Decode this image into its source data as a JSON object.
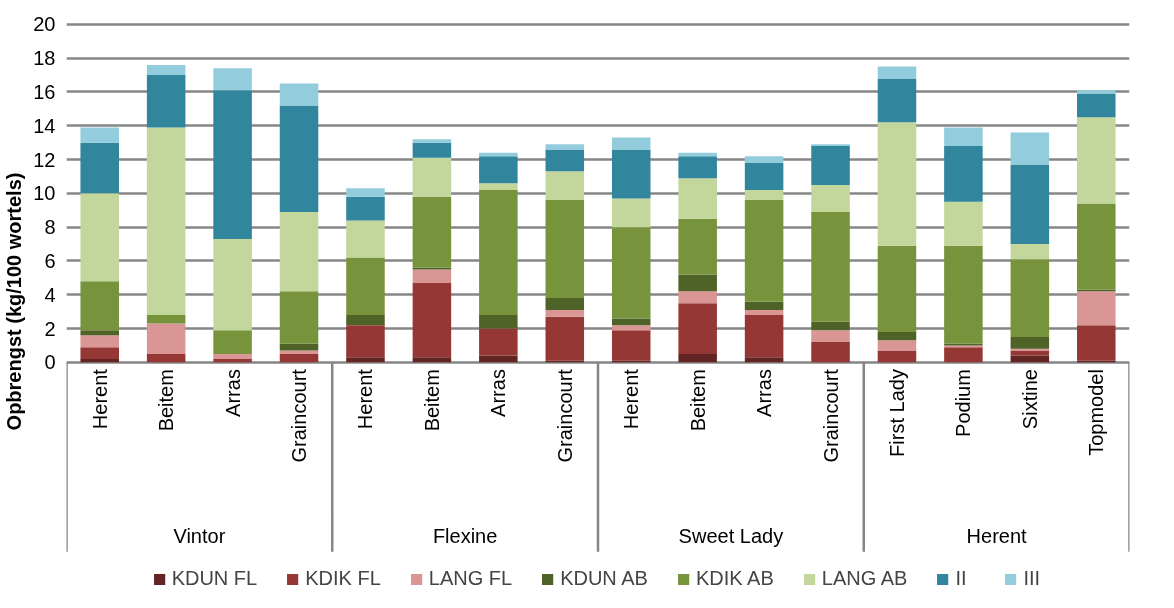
{
  "chart_data": {
    "type": "bar",
    "stacked": true,
    "ylabel": "Opbrengst (kg/100 wortels)",
    "categories": [
      "Herent",
      "Beitem",
      "Arras",
      "Graincourt",
      "Herent",
      "Beitem",
      "Arras",
      "Graincourt",
      "Herent",
      "Beitem",
      "Arras",
      "Graincourt",
      "First Lady",
      "Podium",
      "Sixtine",
      "Topmodel"
    ],
    "annotations": [
      "Vintor",
      "Flexine",
      "Sweet Lady",
      "Herent"
    ],
    "series": [
      {
        "name": "KDUN FL",
        "color": "#632523",
        "values": [
          0.2,
          0,
          0,
          0,
          0.3,
          0.3,
          0.4,
          0.1,
          0.1,
          0.5,
          0.3,
          0,
          0,
          0,
          0.4,
          0.1
        ]
      },
      {
        "name": "KDIK FL",
        "color": "#953735",
        "values": [
          0.7,
          0.5,
          0.2,
          0.5,
          1.9,
          4.4,
          1.6,
          2.6,
          1.8,
          3.0,
          2.5,
          1.2,
          0.7,
          0.9,
          0.3,
          2.1
        ]
      },
      {
        "name": "LANG FL",
        "color": "#d99694",
        "values": [
          0.7,
          1.8,
          0.3,
          0.2,
          0,
          0.8,
          0,
          0.4,
          0.3,
          0.7,
          0.3,
          0.7,
          0.6,
          0.1,
          0.1,
          2.0
        ]
      },
      {
        "name": "KDUN AB",
        "color": "#4f6228",
        "values": [
          0.3,
          0,
          0,
          0.4,
          0.6,
          0.1,
          0.8,
          0.7,
          0.4,
          1.0,
          0.5,
          0.5,
          0.5,
          0.1,
          0.7,
          0.1
        ]
      },
      {
        "name": "KDIK AB",
        "color": "#77933c",
        "values": [
          2.9,
          0.5,
          1.4,
          3.1,
          3.4,
          4.2,
          7.4,
          5.8,
          5.4,
          3.3,
          6.0,
          6.5,
          5.1,
          5.8,
          4.6,
          5.1
        ]
      },
      {
        "name": "LANG AB",
        "color": "#c3d69b",
        "values": [
          5.2,
          11.1,
          5.4,
          4.7,
          2.2,
          2.3,
          0.4,
          1.7,
          1.7,
          2.4,
          0.6,
          1.6,
          7.3,
          2.6,
          0.9,
          5.1
        ]
      },
      {
        "name": "II",
        "color": "#31859c",
        "values": [
          3.0,
          3.1,
          8.8,
          6.3,
          1.4,
          0.9,
          1.6,
          1.3,
          2.9,
          1.3,
          1.6,
          2.3,
          2.6,
          3.3,
          4.7,
          1.4
        ]
      },
      {
        "name": "III",
        "color": "#93cddd",
        "values": [
          0.9,
          0.6,
          1.3,
          1.3,
          0.5,
          0.2,
          0.2,
          0.3,
          0.7,
          0.2,
          0.4,
          0.1,
          0.7,
          1.1,
          1.9,
          0.2
        ]
      }
    ],
    "ylim": [
      0,
      20
    ],
    "yticks": [
      0,
      2,
      4,
      6,
      8,
      10,
      12,
      14,
      16,
      18,
      20
    ],
    "grid": "y",
    "legend": "bottom"
  }
}
